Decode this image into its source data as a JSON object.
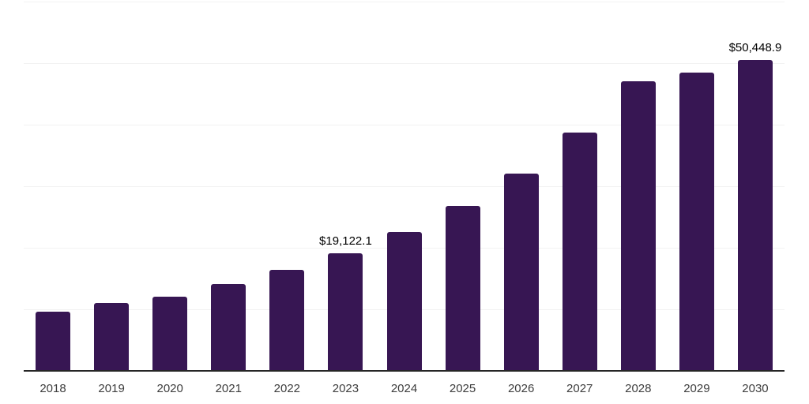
{
  "chart_data": {
    "type": "bar",
    "title": "",
    "xlabel": "",
    "ylabel": "",
    "categories": [
      "2018",
      "2019",
      "2020",
      "2021",
      "2022",
      "2023",
      "2024",
      "2025",
      "2026",
      "2027",
      "2028",
      "2029",
      "2030"
    ],
    "values": [
      9660,
      11070,
      12100,
      14110,
      16460,
      19122.1,
      22580,
      26850,
      31990,
      38700,
      47040,
      48400,
      50448.9
    ],
    "data_labels": [
      null,
      null,
      null,
      null,
      null,
      "$19,122.1",
      null,
      null,
      null,
      null,
      null,
      null,
      "$50,448.9"
    ],
    "ylim": [
      0,
      60000
    ],
    "gridline_step": 10000,
    "grid": "horizontal",
    "legend": "none",
    "colors": {
      "bar": "#371653",
      "axis_line": "#262626",
      "gridline": "#f2f2f2",
      "data_label": "#000000",
      "tick_label": "#3d3d3d",
      "background": "#ffffff"
    }
  }
}
